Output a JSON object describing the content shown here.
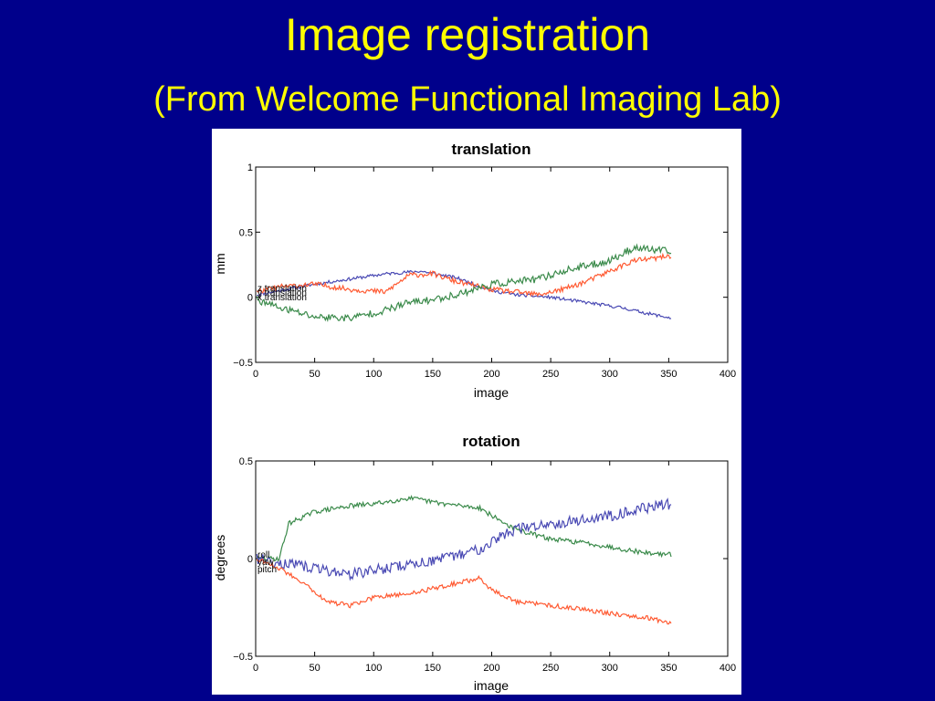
{
  "slide": {
    "title": "Image registration",
    "subtitle": "(From Welcome Functional Imaging Lab)",
    "background_color": "#00008b",
    "title_color": "#ffff00"
  },
  "chart_data": [
    {
      "type": "line",
      "title": "translation",
      "xlabel": "image",
      "ylabel": "mm",
      "xlim": [
        0,
        400
      ],
      "ylim": [
        -0.5,
        1
      ],
      "xticks": [
        0,
        50,
        100,
        150,
        200,
        250,
        300,
        350,
        400
      ],
      "yticks": [
        -0.5,
        0,
        0.5,
        1
      ],
      "ytick_labels": [
        "−0.5",
        "0",
        "0.5",
        "1"
      ],
      "grid": false,
      "legend_labels": [
        "z translation",
        "y translation",
        "x translation"
      ],
      "series": [
        {
          "color": "#4a4ab4",
          "noise": 0.012,
          "x": [
            1,
            20,
            50,
            80,
            110,
            140,
            170,
            200,
            220,
            250,
            280,
            310,
            330,
            352
          ],
          "values": [
            0.02,
            0.05,
            0.1,
            0.14,
            0.18,
            0.2,
            0.15,
            0.05,
            0.02,
            0.0,
            -0.04,
            -0.08,
            -0.12,
            -0.16
          ]
        },
        {
          "color": "#ff5a32",
          "noise": 0.02,
          "x": [
            1,
            20,
            50,
            80,
            110,
            130,
            150,
            170,
            200,
            220,
            240,
            260,
            280,
            300,
            320,
            340,
            352
          ],
          "values": [
            0.04,
            0.08,
            0.1,
            0.06,
            0.04,
            0.17,
            0.18,
            0.12,
            0.06,
            0.04,
            0.02,
            0.06,
            0.12,
            0.2,
            0.28,
            0.3,
            0.32
          ]
        },
        {
          "color": "#3a8a4a",
          "noise": 0.028,
          "x": [
            1,
            20,
            50,
            80,
            110,
            130,
            150,
            170,
            200,
            220,
            240,
            260,
            280,
            300,
            320,
            352
          ],
          "values": [
            -0.02,
            -0.08,
            -0.15,
            -0.16,
            -0.1,
            -0.04,
            -0.02,
            0.02,
            0.1,
            0.12,
            0.14,
            0.2,
            0.24,
            0.28,
            0.38,
            0.35
          ]
        }
      ]
    },
    {
      "type": "line",
      "title": "rotation",
      "xlabel": "image",
      "ylabel": "degrees",
      "xlim": [
        0,
        400
      ],
      "ylim": [
        -0.5,
        0.5
      ],
      "xticks": [
        0,
        50,
        100,
        150,
        200,
        250,
        300,
        350,
        400
      ],
      "yticks": [
        -0.5,
        0,
        0.5
      ],
      "ytick_labels": [
        "−0.5",
        "0",
        "0.5"
      ],
      "grid": false,
      "legend_labels": [
        "roll",
        "yaw",
        "pitch"
      ],
      "series": [
        {
          "color": "#3a8a4a",
          "noise": 0.012,
          "x": [
            1,
            20,
            28,
            50,
            80,
            100,
            130,
            160,
            190,
            200,
            220,
            250,
            280,
            300,
            330,
            352
          ],
          "values": [
            0.0,
            0.0,
            0.18,
            0.24,
            0.27,
            0.28,
            0.31,
            0.28,
            0.26,
            0.22,
            0.15,
            0.1,
            0.08,
            0.06,
            0.03,
            0.02
          ]
        },
        {
          "color": "#4a4ab4",
          "noise": 0.028,
          "x": [
            1,
            20,
            50,
            80,
            100,
            130,
            160,
            190,
            200,
            220,
            250,
            280,
            300,
            330,
            352
          ],
          "values": [
            0.0,
            -0.02,
            -0.05,
            -0.08,
            -0.06,
            -0.03,
            0.0,
            0.05,
            0.09,
            0.15,
            0.18,
            0.2,
            0.22,
            0.26,
            0.28
          ]
        },
        {
          "color": "#ff5a32",
          "noise": 0.012,
          "x": [
            1,
            20,
            40,
            60,
            80,
            100,
            130,
            160,
            190,
            200,
            220,
            250,
            280,
            300,
            330,
            352
          ],
          "values": [
            0.0,
            -0.05,
            -0.12,
            -0.22,
            -0.24,
            -0.2,
            -0.18,
            -0.14,
            -0.1,
            -0.16,
            -0.22,
            -0.24,
            -0.26,
            -0.28,
            -0.3,
            -0.33
          ]
        }
      ]
    }
  ]
}
